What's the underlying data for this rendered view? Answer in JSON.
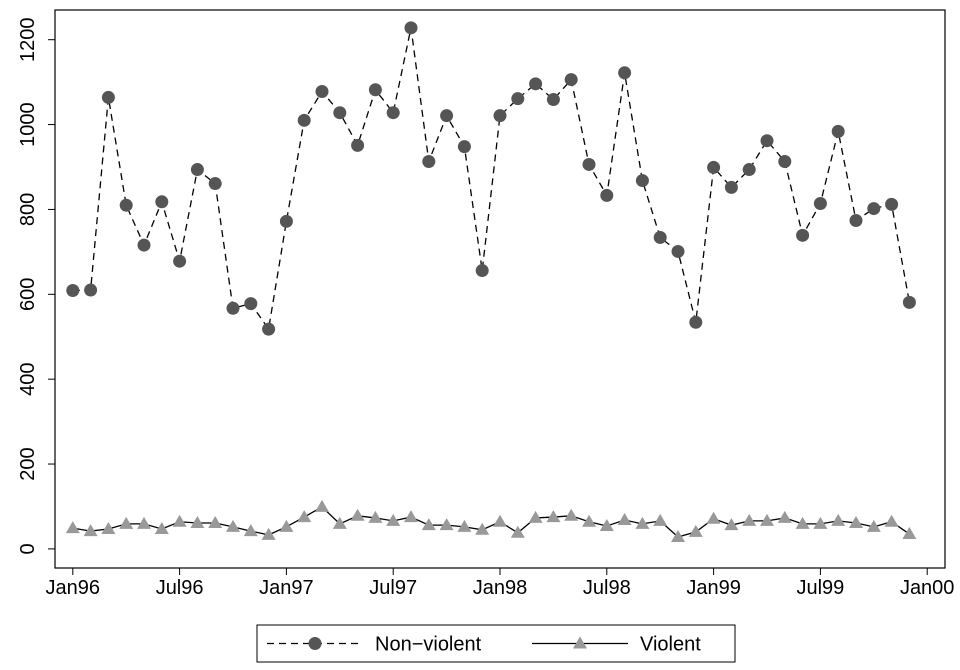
{
  "chart_data": {
    "type": "line",
    "x": [
      "1996-01",
      "1996-02",
      "1996-03",
      "1996-04",
      "1996-05",
      "1996-06",
      "1996-07",
      "1996-08",
      "1996-09",
      "1996-10",
      "1996-11",
      "1996-12",
      "1997-01",
      "1997-02",
      "1997-03",
      "1997-04",
      "1997-05",
      "1997-06",
      "1997-07",
      "1997-08",
      "1997-09",
      "1997-10",
      "1997-11",
      "1997-12",
      "1998-01",
      "1998-02",
      "1998-03",
      "1998-04",
      "1998-05",
      "1998-06",
      "1998-07",
      "1998-08",
      "1998-09",
      "1998-10",
      "1998-11",
      "1998-12",
      "1999-01",
      "1999-02",
      "1999-03",
      "1999-04",
      "1999-05",
      "1999-06",
      "1999-07",
      "1999-08",
      "1999-09",
      "1999-10",
      "1999-11",
      "1999-12"
    ],
    "series": [
      {
        "name": "Non−violent",
        "color": "#555555",
        "marker": "circle",
        "line_style": "dashed",
        "values": [
          609,
          610,
          1064,
          810,
          716,
          818,
          678,
          894,
          861,
          567,
          578,
          518,
          772,
          1010,
          1078,
          1028,
          951,
          1082,
          1028,
          1228,
          913,
          1021,
          948,
          656,
          1021,
          1061,
          1096,
          1059,
          1106,
          906,
          833,
          1122,
          868,
          734,
          701,
          534,
          899,
          852,
          894,
          962,
          913,
          739,
          814,
          984,
          774,
          802,
          812,
          581
        ]
      },
      {
        "name": "Violent",
        "color": "#999999",
        "marker": "triangle",
        "line_style": "solid",
        "values": [
          49,
          42,
          47,
          59,
          59,
          47,
          64,
          61,
          61,
          52,
          42,
          33,
          52,
          75,
          99,
          59,
          78,
          73,
          66,
          75,
          56,
          56,
          52,
          45,
          64,
          38,
          73,
          75,
          78,
          64,
          54,
          68,
          59,
          66,
          28,
          40,
          71,
          56,
          66,
          66,
          73,
          59,
          59,
          66,
          61,
          52,
          64,
          35
        ]
      }
    ],
    "xlim": [
      "1995-12",
      "2000-02"
    ],
    "xticks": [
      {
        "value": "1996-01",
        "label": "Jan96"
      },
      {
        "value": "1996-07",
        "label": "Jul96"
      },
      {
        "value": "1997-01",
        "label": "Jan97"
      },
      {
        "value": "1997-07",
        "label": "Jul97"
      },
      {
        "value": "1998-01",
        "label": "Jan98"
      },
      {
        "value": "1998-07",
        "label": "Jul98"
      },
      {
        "value": "1999-01",
        "label": "Jan99"
      },
      {
        "value": "1999-07",
        "label": "Jul99"
      },
      {
        "value": "2000-01",
        "label": "Jan00"
      }
    ],
    "ylim": [
      -45,
      1270
    ],
    "yticks": [
      0,
      200,
      400,
      600,
      800,
      1000,
      1200
    ],
    "grid": false,
    "legend": "bottom"
  }
}
